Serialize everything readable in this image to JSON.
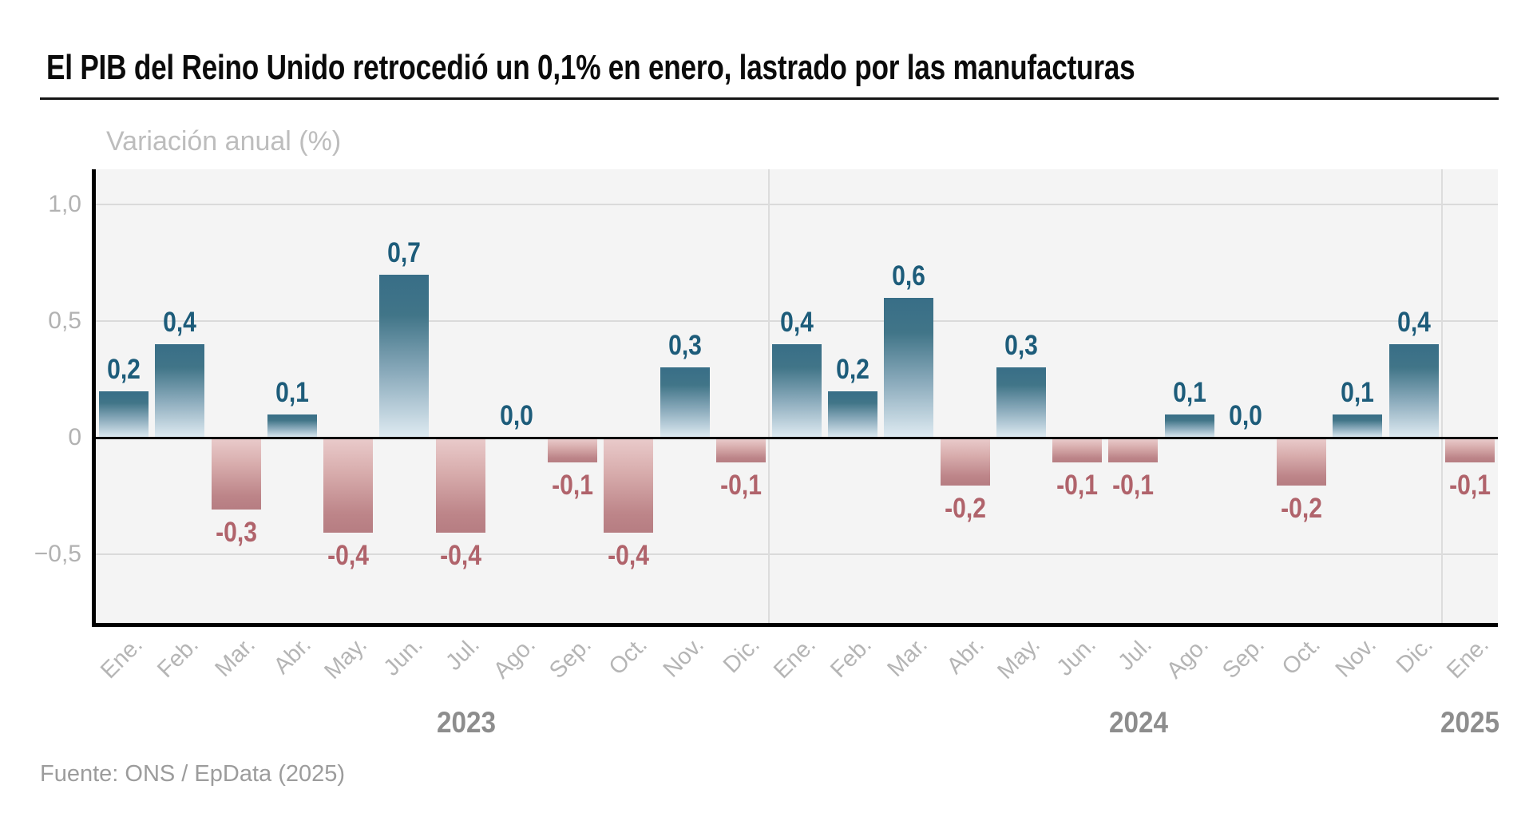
{
  "header": {
    "title": "El PIB del Reino Unido retrocedió un 0,1% en enero, lastrado por las manufacturas",
    "subtitle": "Variación anual (%)"
  },
  "footer": {
    "source": "Fuente: ONS / EpData (2025)"
  },
  "colors": {
    "positive_bar_top": "#386e87",
    "positive_bar_bottom": "#dfebf2",
    "negative_bar_top": "#e9caca",
    "negative_bar_bottom": "#b67d82",
    "positive_label": "#1d5c7a",
    "negative_label": "#b0636b",
    "axis_black": "#000000",
    "gridline": "#dadada",
    "tick_text": "#b2b2b2",
    "month_text": "#b5b5b5",
    "year_text": "#8d8d8d",
    "plot_background": "#f4f4f4"
  },
  "chart_data": {
    "type": "bar",
    "title": "El PIB del Reino Unido retrocedió un 0,1% en enero, lastrado por las manufacturas",
    "ylabel": "Variación anual (%)",
    "xlabel": "",
    "grid": "horizontal gridlines at 1,0 / 0,5 / -0,5 plus black zero line; light vertical separators between years",
    "legend_position": "none",
    "ylim": [
      -0.79,
      1.15
    ],
    "y_ticks": [
      "1,0",
      "0,5",
      "0",
      "−0,5"
    ],
    "y_tick_values": [
      1.0,
      0.5,
      0,
      -0.5
    ],
    "categories": [
      "Ene.",
      "Feb.",
      "Mar.",
      "Abr.",
      "May.",
      "Jun.",
      "Jul.",
      "Ago.",
      "Sep.",
      "Oct.",
      "Nov.",
      "Dic.",
      "Ene.",
      "Feb.",
      "Mar.",
      "Abr.",
      "May.",
      "Jun.",
      "Jul.",
      "Ago.",
      "Sep.",
      "Oct.",
      "Nov.",
      "Dic.",
      "Ene."
    ],
    "values": [
      0.2,
      0.4,
      -0.3,
      0.1,
      -0.4,
      0.7,
      -0.4,
      0.0,
      -0.1,
      -0.4,
      0.3,
      -0.1,
      0.4,
      0.2,
      0.6,
      -0.2,
      0.3,
      -0.1,
      -0.1,
      0.1,
      0.0,
      -0.2,
      0.1,
      0.4,
      -0.1
    ],
    "value_labels": [
      "0,2",
      "0,4",
      "-0,3",
      "0,1",
      "-0,4",
      "0,7",
      "-0,4",
      "0,0",
      "-0,1",
      "-0,4",
      "0,3",
      "-0,1",
      "0,4",
      "0,2",
      "0,6",
      "-0,2",
      "0,3",
      "-0,1",
      "-0,1",
      "0,1",
      "0,0",
      "-0,2",
      "0,1",
      "0,4",
      "-0,1"
    ],
    "years": [
      "2023",
      "2024",
      "2025"
    ],
    "year_month_spans": [
      [
        0,
        11
      ],
      [
        12,
        23
      ],
      [
        24,
        24
      ]
    ]
  }
}
